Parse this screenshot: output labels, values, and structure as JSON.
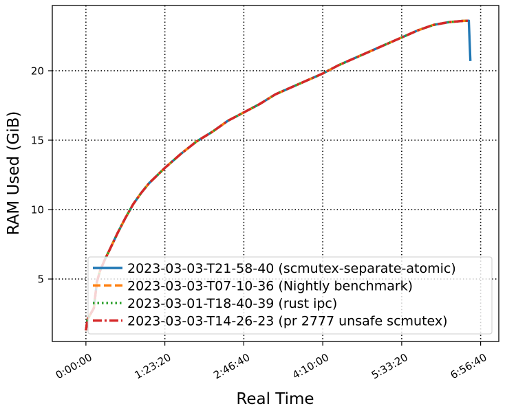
{
  "chart_data": {
    "type": "line",
    "xlabel": "Real Time",
    "ylabel": "RAM Used (GiB)",
    "xlim": [
      -2130,
      26150
    ],
    "ylim": [
      0.5,
      24.7
    ],
    "x_ticks": [
      {
        "value": 0,
        "label": "0:00:00"
      },
      {
        "value": 5000,
        "label": "1:23:20"
      },
      {
        "value": 10000,
        "label": "2:46:40"
      },
      {
        "value": 15000,
        "label": "4:10:00"
      },
      {
        "value": 20000,
        "label": "5:33:20"
      },
      {
        "value": 25000,
        "label": "6:56:40"
      }
    ],
    "y_ticks": [
      {
        "value": 5,
        "label": "5"
      },
      {
        "value": 10,
        "label": "10"
      },
      {
        "value": 15,
        "label": "15"
      },
      {
        "value": 20,
        "label": "20"
      }
    ],
    "grid": true,
    "legend_position": "lower-right",
    "series": [
      {
        "name": "2023-03-03-T21-58-40 (scmutex-separate-atomic)",
        "color": "#1f77b4",
        "style": "solid",
        "x": [
          0,
          100,
          300,
          500,
          700,
          900,
          1200,
          1500,
          2000,
          2500,
          3000,
          3500,
          4000,
          5000,
          6000,
          7000,
          8000,
          9000,
          10000,
          11000,
          12000,
          13000,
          14000,
          15000,
          16000,
          17000,
          18000,
          19000,
          20000,
          21000,
          22000,
          23000,
          24000,
          24250,
          24350
        ],
        "y": [
          1.3,
          2.1,
          2.5,
          2.9,
          4.8,
          5.6,
          6.4,
          7.1,
          8.3,
          9.4,
          10.4,
          11.2,
          11.9,
          13.0,
          14.0,
          14.9,
          15.6,
          16.4,
          17.0,
          17.6,
          18.3,
          18.8,
          19.3,
          19.8,
          20.4,
          20.9,
          21.4,
          21.9,
          22.4,
          22.9,
          23.3,
          23.5,
          23.6,
          23.6,
          20.7
        ]
      },
      {
        "name": "2023-03-03-T07-10-36 (Nightly benchmark)",
        "color": "#ff7f0e",
        "style": "dashed",
        "x": [
          0,
          100,
          300,
          500,
          700,
          900,
          1200,
          1500,
          2000,
          2500,
          3000,
          3500,
          4000,
          5000,
          6000,
          7000,
          8000,
          9000,
          10000,
          11000,
          12000,
          13000,
          14000,
          15000,
          16000,
          17000,
          18000,
          19000,
          20000,
          21000,
          22000,
          23000,
          24000,
          24250
        ],
        "y": [
          1.3,
          2.1,
          2.5,
          2.9,
          4.8,
          5.6,
          6.4,
          7.1,
          8.3,
          9.4,
          10.4,
          11.2,
          11.9,
          13.0,
          14.0,
          14.9,
          15.6,
          16.4,
          17.0,
          17.6,
          18.3,
          18.8,
          19.3,
          19.8,
          20.4,
          20.9,
          21.4,
          21.9,
          22.4,
          22.9,
          23.3,
          23.5,
          23.6,
          23.6
        ]
      },
      {
        "name": "2023-03-01-T18-40-39 (rust ipc)",
        "color": "#2ca02c",
        "style": "dotted",
        "x": [
          0,
          100,
          300,
          500,
          700,
          900,
          1200,
          1500,
          2000,
          2500,
          3000,
          3500,
          4000,
          5000,
          6000,
          7000,
          8000,
          9000,
          10000,
          11000,
          12000,
          13000,
          14000,
          15000,
          16000,
          17000,
          18000,
          19000,
          20000,
          21000,
          22000,
          23000,
          24000,
          24250
        ],
        "y": [
          1.3,
          2.1,
          2.5,
          2.9,
          4.8,
          5.6,
          6.4,
          7.1,
          8.3,
          9.4,
          10.4,
          11.2,
          11.9,
          13.0,
          14.0,
          14.9,
          15.6,
          16.4,
          17.0,
          17.6,
          18.3,
          18.8,
          19.3,
          19.8,
          20.4,
          20.9,
          21.4,
          21.9,
          22.4,
          22.9,
          23.3,
          23.5,
          23.6,
          23.6
        ]
      },
      {
        "name": "2023-03-03-T14-26-23 (pr 2777 unsafe scmutex)",
        "color": "#d62728",
        "style": "dashdot",
        "x": [
          0,
          100,
          300,
          500,
          700,
          900,
          1200,
          1500,
          2000,
          2500,
          3000,
          3500,
          4000,
          5000,
          6000,
          7000,
          8000,
          9000,
          10000,
          11000,
          12000,
          13000,
          14000,
          15000,
          16000,
          17000,
          18000,
          19000,
          20000,
          21000,
          22000,
          23000,
          24000,
          24250
        ],
        "y": [
          1.3,
          2.1,
          2.5,
          2.9,
          4.8,
          5.6,
          6.4,
          7.1,
          8.3,
          9.4,
          10.4,
          11.2,
          11.9,
          13.0,
          14.0,
          14.9,
          15.6,
          16.4,
          17.0,
          17.6,
          18.3,
          18.8,
          19.3,
          19.8,
          20.4,
          20.9,
          21.4,
          21.9,
          22.4,
          22.9,
          23.3,
          23.5,
          23.6,
          23.6
        ]
      }
    ]
  }
}
